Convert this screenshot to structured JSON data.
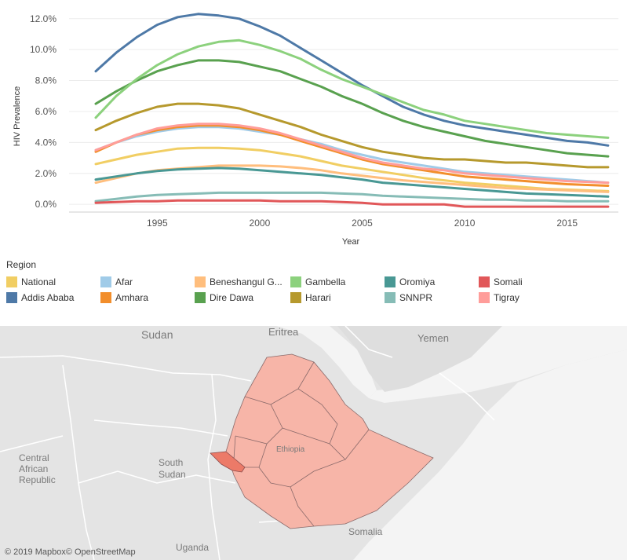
{
  "chart_data": {
    "type": "line",
    "xlabel": "Year",
    "ylabel": "HIV Prevalence",
    "x_ticks": [
      "1995",
      "2000",
      "2005",
      "2010",
      "2015"
    ],
    "y_ticks": [
      "0.0%",
      "2.0%",
      "4.0%",
      "6.0%",
      "8.0%",
      "10.0%",
      "12.0%"
    ],
    "xlim": [
      1990.7,
      2017.5
    ],
    "ylim": [
      -0.5,
      12.8
    ],
    "grid": true,
    "x": [
      1992,
      1993,
      1994,
      1995,
      1996,
      1997,
      1998,
      1999,
      2000,
      2001,
      2002,
      2003,
      2004,
      2005,
      2006,
      2007,
      2008,
      2009,
      2010,
      2011,
      2012,
      2013,
      2014,
      2015,
      2016,
      2017
    ],
    "series": [
      {
        "name": "National",
        "color": "#f1ce63",
        "values": [
          2.6,
          2.9,
          3.2,
          3.4,
          3.6,
          3.65,
          3.65,
          3.6,
          3.5,
          3.3,
          3.1,
          2.8,
          2.5,
          2.3,
          2.1,
          1.9,
          1.7,
          1.55,
          1.4,
          1.3,
          1.2,
          1.1,
          1.0,
          0.95,
          0.9,
          0.85
        ]
      },
      {
        "name": "Addis Ababa",
        "color": "#4e79a7",
        "values": [
          8.6,
          9.8,
          10.8,
          11.6,
          12.1,
          12.3,
          12.2,
          12.0,
          11.5,
          10.9,
          10.1,
          9.3,
          8.5,
          7.7,
          7.0,
          6.3,
          5.8,
          5.4,
          5.1,
          4.9,
          4.7,
          4.5,
          4.3,
          4.1,
          4.0,
          3.8
        ]
      },
      {
        "name": "Afar",
        "color": "#a0cbe8",
        "values": [
          3.5,
          4.0,
          4.4,
          4.7,
          4.9,
          5.0,
          5.0,
          4.9,
          4.7,
          4.5,
          4.2,
          3.9,
          3.5,
          3.2,
          2.9,
          2.7,
          2.5,
          2.3,
          2.1,
          2.0,
          1.9,
          1.8,
          1.7,
          1.6,
          1.5,
          1.4
        ]
      },
      {
        "name": "Amhara",
        "color": "#f28e2b",
        "values": [
          3.4,
          4.0,
          4.5,
          4.8,
          5.0,
          5.1,
          5.1,
          5.0,
          4.8,
          4.5,
          4.1,
          3.7,
          3.3,
          2.9,
          2.6,
          2.4,
          2.2,
          2.0,
          1.8,
          1.7,
          1.6,
          1.5,
          1.4,
          1.3,
          1.25,
          1.2
        ]
      },
      {
        "name": "Beneshangul G...",
        "color": "#ffbe7d",
        "values": [
          1.4,
          1.7,
          2.0,
          2.2,
          2.3,
          2.4,
          2.5,
          2.5,
          2.5,
          2.45,
          2.35,
          2.2,
          2.0,
          1.85,
          1.7,
          1.55,
          1.45,
          1.35,
          1.25,
          1.15,
          1.05,
          1.0,
          0.95,
          0.9,
          0.85,
          0.8
        ]
      },
      {
        "name": "Dire Dawa",
        "color": "#59a14f",
        "values": [
          6.5,
          7.3,
          8.0,
          8.6,
          9.0,
          9.3,
          9.3,
          9.2,
          8.9,
          8.6,
          8.1,
          7.6,
          7.0,
          6.5,
          5.9,
          5.4,
          5.0,
          4.7,
          4.4,
          4.1,
          3.9,
          3.7,
          3.5,
          3.3,
          3.2,
          3.1
        ]
      },
      {
        "name": "Gambella",
        "color": "#8cd17d",
        "values": [
          5.6,
          7.0,
          8.1,
          9.0,
          9.7,
          10.2,
          10.5,
          10.6,
          10.3,
          9.9,
          9.4,
          8.7,
          8.1,
          7.6,
          7.1,
          6.6,
          6.1,
          5.8,
          5.4,
          5.2,
          5.0,
          4.8,
          4.6,
          4.5,
          4.4,
          4.3
        ]
      },
      {
        "name": "Harari",
        "color": "#b6992d",
        "values": [
          4.8,
          5.4,
          5.9,
          6.3,
          6.5,
          6.5,
          6.4,
          6.2,
          5.8,
          5.4,
          5.0,
          4.5,
          4.1,
          3.7,
          3.4,
          3.2,
          3.0,
          2.9,
          2.9,
          2.8,
          2.7,
          2.7,
          2.6,
          2.5,
          2.4,
          2.4
        ]
      },
      {
        "name": "Oromiya",
        "color": "#499894",
        "values": [
          1.6,
          1.8,
          2.0,
          2.15,
          2.25,
          2.3,
          2.35,
          2.3,
          2.2,
          2.1,
          2.0,
          1.9,
          1.75,
          1.6,
          1.4,
          1.3,
          1.2,
          1.1,
          1.0,
          0.9,
          0.8,
          0.7,
          0.65,
          0.6,
          0.55,
          0.5
        ]
      },
      {
        "name": "SNNPR",
        "color": "#86bcb6",
        "values": [
          0.2,
          0.35,
          0.5,
          0.6,
          0.65,
          0.7,
          0.75,
          0.75,
          0.75,
          0.75,
          0.75,
          0.75,
          0.7,
          0.65,
          0.55,
          0.5,
          0.45,
          0.4,
          0.35,
          0.3,
          0.3,
          0.25,
          0.25,
          0.2,
          0.2,
          0.2
        ]
      },
      {
        "name": "Somali",
        "color": "#e15759",
        "values": [
          0.1,
          0.15,
          0.2,
          0.2,
          0.25,
          0.25,
          0.25,
          0.25,
          0.25,
          0.2,
          0.2,
          0.2,
          0.15,
          0.1,
          0.0,
          0.0,
          0.0,
          0.0,
          -0.15,
          -0.15,
          -0.15,
          -0.15,
          -0.15,
          -0.15,
          -0.15,
          -0.15
        ]
      },
      {
        "name": "Tigray",
        "color": "#ff9d9a",
        "values": [
          3.5,
          4.0,
          4.5,
          4.9,
          5.1,
          5.2,
          5.2,
          5.1,
          4.9,
          4.6,
          4.2,
          3.8,
          3.4,
          3.0,
          2.7,
          2.5,
          2.3,
          2.2,
          2.0,
          1.9,
          1.8,
          1.7,
          1.6,
          1.5,
          1.45,
          1.4
        ]
      }
    ]
  },
  "legend": {
    "title": "Region",
    "items": [
      {
        "label": "National",
        "color": "#f1ce63"
      },
      {
        "label": "Afar",
        "color": "#a0cbe8"
      },
      {
        "label": "Beneshangul G...",
        "color": "#ffbe7d"
      },
      {
        "label": "Gambella",
        "color": "#8cd17d"
      },
      {
        "label": "Oromiya",
        "color": "#499894"
      },
      {
        "label": "Somali",
        "color": "#e15759"
      },
      {
        "label": "Addis Ababa",
        "color": "#4e79a7"
      },
      {
        "label": "Amhara",
        "color": "#f28e2b"
      },
      {
        "label": "Dire Dawa",
        "color": "#59a14f"
      },
      {
        "label": "Harari",
        "color": "#b6992d"
      },
      {
        "label": "SNNPR",
        "color": "#86bcb6"
      },
      {
        "label": "Tigray",
        "color": "#ff9d9a"
      }
    ]
  },
  "map": {
    "labels": {
      "sudan": "Sudan",
      "eritrea": "Eritrea",
      "yemen": "Yemen",
      "south_sudan_1": "South",
      "south_sudan_2": "Sudan",
      "car_1": "Central",
      "car_2": "African",
      "car_3": "Republic",
      "ethiopia": "Ethiopia",
      "somalia": "Somalia",
      "uganda": "Uganda"
    },
    "region_fill": "#f7b5a8",
    "highlight_fill": "#ec7a68",
    "attribution": "© 2019 Mapbox© OpenStreetMap"
  }
}
